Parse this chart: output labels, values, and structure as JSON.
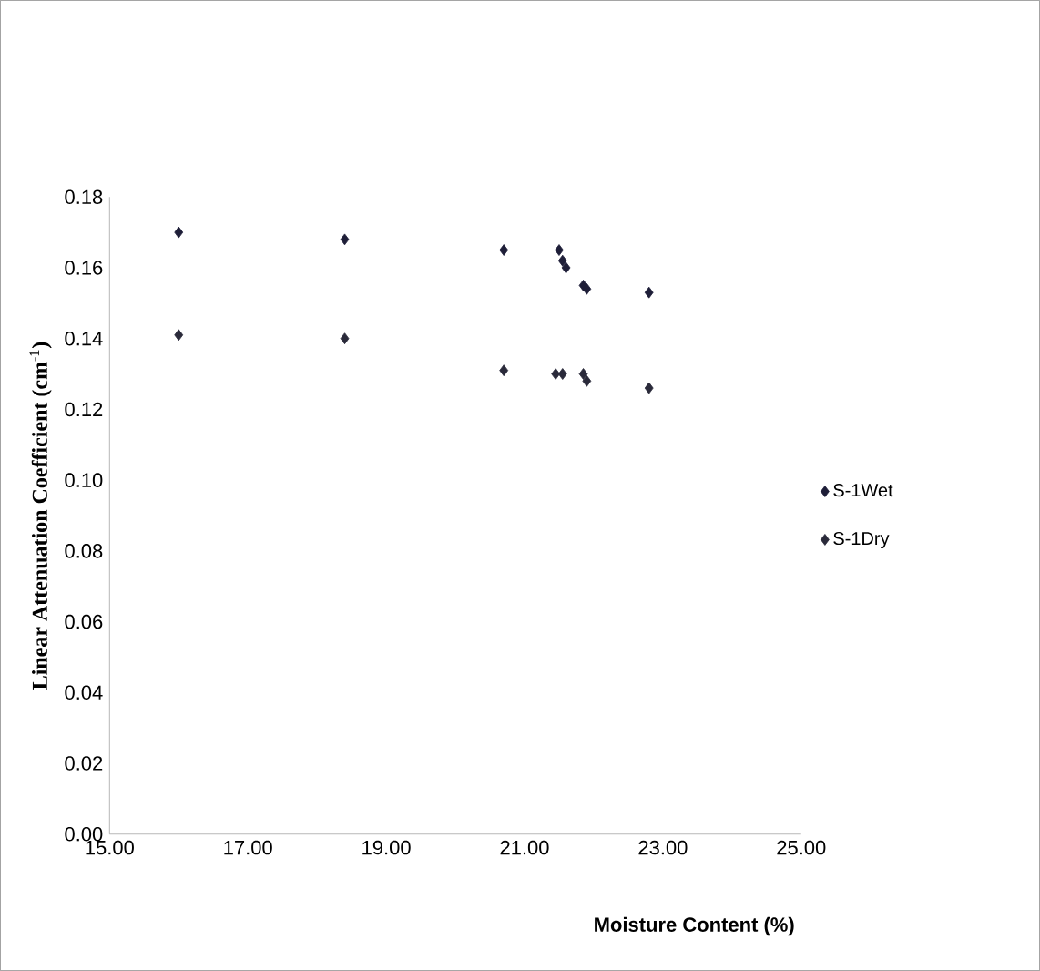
{
  "chart_data": {
    "type": "scatter",
    "xlabel": "Moisture Content (%)",
    "ylabel": "Linear Attenuation Coefficient (cm$^{-1}$)",
    "xlim": [
      15,
      25
    ],
    "ylim": [
      0,
      0.18
    ],
    "xticks": [
      {
        "value": 15,
        "label": "15.00"
      },
      {
        "value": 17,
        "label": "17.00"
      },
      {
        "value": 19,
        "label": "19.00"
      },
      {
        "value": 21,
        "label": "21.00"
      },
      {
        "value": 23,
        "label": "23.00"
      },
      {
        "value": 25,
        "label": "25.00"
      }
    ],
    "yticks": [
      {
        "value": 0,
        "label": "0.00"
      },
      {
        "value": 0.02,
        "label": "0.02"
      },
      {
        "value": 0.04,
        "label": "0.04"
      },
      {
        "value": 0.06,
        "label": "0.06"
      },
      {
        "value": 0.08,
        "label": "0.08"
      },
      {
        "value": 0.1,
        "label": "0.10"
      },
      {
        "value": 0.12,
        "label": "0.12"
      },
      {
        "value": 0.14,
        "label": "0.14"
      },
      {
        "value": 0.16,
        "label": "0.16"
      },
      {
        "value": 0.18,
        "label": "0.18"
      }
    ],
    "marker": "diamond",
    "legend": "right",
    "grid": false,
    "series": [
      {
        "name": "S-1Wet",
        "color": "#1e1e38",
        "x": [
          16.0,
          18.4,
          20.7,
          21.5,
          21.55,
          21.6,
          21.85,
          21.9,
          22.8
        ],
        "values": [
          0.17,
          0.168,
          0.165,
          0.165,
          0.162,
          0.16,
          0.155,
          0.154,
          0.153
        ]
      },
      {
        "name": "S-1Dry",
        "color": "#2a2a3a",
        "x": [
          16.0,
          18.4,
          20.7,
          21.45,
          21.55,
          21.85,
          21.9,
          22.8
        ],
        "values": [
          0.141,
          0.14,
          0.131,
          0.13,
          0.13,
          0.13,
          0.128,
          0.126
        ]
      }
    ]
  }
}
